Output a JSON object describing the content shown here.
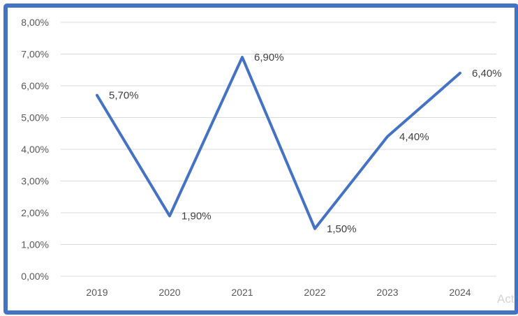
{
  "chart_data": {
    "type": "line",
    "categories": [
      "2019",
      "2020",
      "2021",
      "2022",
      "2023",
      "2024"
    ],
    "series": [
      {
        "values": [
          5.7,
          1.9,
          6.9,
          1.5,
          4.4,
          6.4
        ],
        "data_labels": [
          "5,70%",
          "1,90%",
          "6,90%",
          "1,50%",
          "4,40%",
          "6,40%"
        ],
        "color": "#4472C4"
      }
    ],
    "ylim": [
      0,
      8
    ],
    "y_ticks": [
      0,
      1,
      2,
      3,
      4,
      5,
      6,
      7,
      8
    ],
    "y_tick_labels": [
      "0,00%",
      "1,00%",
      "2,00%",
      "3,00%",
      "4,00%",
      "5,00%",
      "6,00%",
      "7,00%",
      "8,00%"
    ],
    "grid": true,
    "title": "",
    "xlabel": "",
    "ylabel": ""
  },
  "frame_color": "#4472C4",
  "watermark_text": "Act"
}
